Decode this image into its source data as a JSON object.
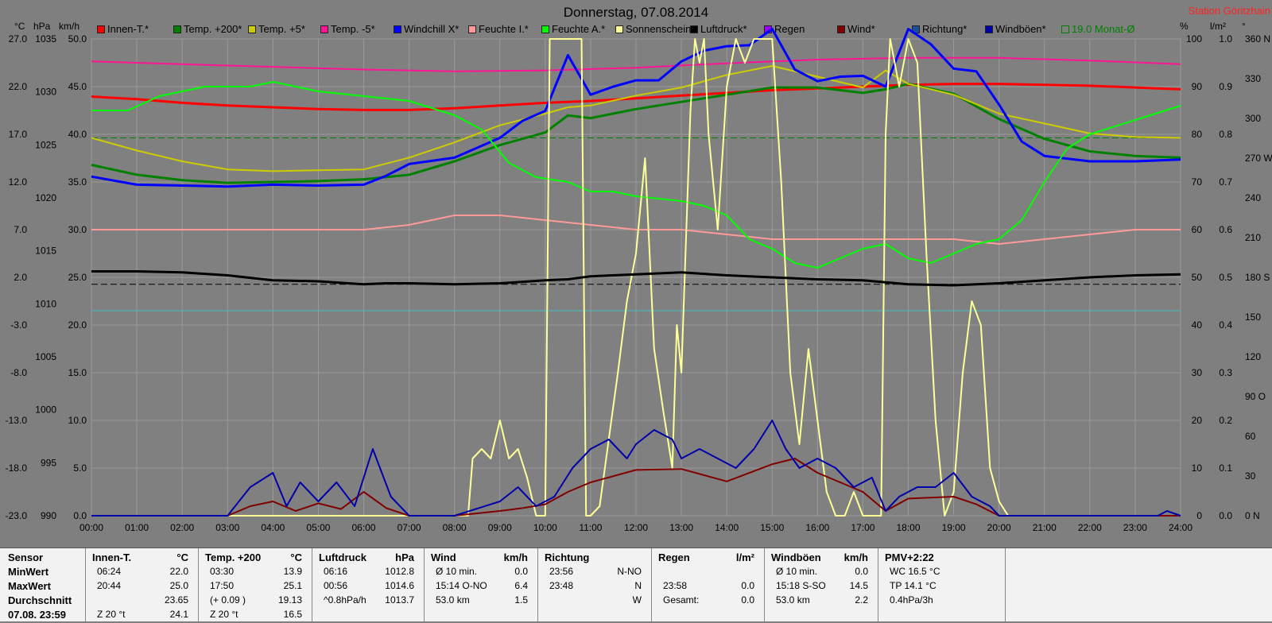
{
  "title": "Donnerstag, 07.08.2014",
  "station": "Station Göritzhain",
  "units": {
    "celsius": "°C",
    "hpa": "hPa",
    "kmh": "km/h",
    "percent": "%",
    "lm2": "l/m²",
    "deg": "°"
  },
  "legend": [
    {
      "label": "Innen-T.*",
      "color": "#ff0000"
    },
    {
      "label": "Temp. +200*",
      "color": "#008000"
    },
    {
      "label": "Temp. +5*",
      "color": "#cccc00"
    },
    {
      "label": "Temp. -5*",
      "color": "#ff1493"
    },
    {
      "label": "Windchill X*",
      "color": "#0000ff"
    },
    {
      "label": "Feuchte I.*",
      "color": "#ff9a9a"
    },
    {
      "label": "Feuchte A.*",
      "color": "#00ff00"
    },
    {
      "label": "Sonnenschein",
      "color": "#ffff99"
    },
    {
      "label": "Luftdruck*",
      "color": "#000000"
    },
    {
      "label": "Regen",
      "color": "#9900ff"
    },
    {
      "label": "Wind*",
      "color": "#800000"
    },
    {
      "label": "Richtung*",
      "color": "#1f4e99"
    },
    {
      "label": "Windböen*",
      "color": "#0000aa"
    },
    {
      "label": "19.0 Monat-Ø",
      "color": "#008000"
    }
  ],
  "chart_data": {
    "type": "line",
    "title": "Donnerstag, 07.08.2014",
    "x_ticks": [
      "00:00",
      "01:00",
      "02:00",
      "03:00",
      "04:00",
      "05:00",
      "06:00",
      "07:00",
      "08:00",
      "09:00",
      "10:00",
      "11:00",
      "12:00",
      "13:00",
      "14:00",
      "15:00",
      "16:00",
      "17:00",
      "18:00",
      "19:00",
      "20:00",
      "21:00",
      "22:00",
      "23:00",
      "24:00"
    ],
    "xlim": [
      0,
      24
    ],
    "axes": {
      "temp_c": {
        "ticks": [
          "27.0",
          "22.0",
          "17.0",
          "12.0",
          "7.0",
          "2.0",
          "-3.0",
          "-8.0",
          "-13.0",
          "-18.0",
          "-23.0"
        ],
        "ylim": [
          -23,
          30
        ]
      },
      "pressure_hpa": {
        "ticks": [
          "1035",
          "1030",
          "1025",
          "1020",
          "1015",
          "1010",
          "1005",
          "1000",
          "995",
          "990"
        ],
        "ylim": [
          990,
          1038
        ]
      },
      "speed_kmh": {
        "ticks": [
          "50.0",
          "45.0",
          "40.0",
          "35.0",
          "30.0",
          "25.0",
          "20.0",
          "15.0",
          "10.0",
          "5.0",
          "0.0"
        ],
        "ylim": [
          0,
          50
        ]
      },
      "percent": {
        "ticks": [
          "100",
          "90",
          "80",
          "70",
          "60",
          "50",
          "40",
          "30",
          "20",
          "10",
          "0"
        ],
        "ylim": [
          0,
          100
        ]
      },
      "rain_lm2": {
        "ticks": [
          "1.0",
          "0.9",
          "0.8",
          "0.7",
          "0.6",
          "0.5",
          "0.4",
          "0.3",
          "0.2",
          "0.1",
          "0.0"
        ],
        "ylim": [
          0,
          1
        ]
      },
      "direction_deg": {
        "ticks": [
          "360 N",
          "330",
          "300",
          "270 W",
          "240",
          "210",
          "180 S",
          "150",
          "120",
          "90 O",
          "60",
          "30",
          "0 N"
        ],
        "ylim": [
          0,
          360
        ]
      }
    },
    "reference_lines": [
      {
        "name": "Monat-Ø",
        "axis": "temp_c",
        "value": 19.0,
        "color": "#008000"
      },
      {
        "name": "pressure-ref",
        "axis": "pressure_hpa",
        "value": 1013.3,
        "color": "#000000"
      },
      {
        "name": "cyan-ref",
        "axis": "percent",
        "value": 43,
        "color": "#40c0c0"
      }
    ],
    "series": [
      {
        "name": "Innen-T.*",
        "axis": "temp_c",
        "color": "#ff0000",
        "width": 3,
        "x": [
          0,
          1,
          2,
          3,
          4,
          5,
          6,
          7,
          8,
          9,
          10,
          11,
          12,
          13,
          14,
          15,
          16,
          17,
          18,
          19,
          20,
          21,
          22,
          23,
          24
        ],
        "y": [
          23.6,
          23.3,
          22.9,
          22.6,
          22.4,
          22.2,
          22.1,
          22.1,
          22.3,
          22.6,
          22.9,
          23.1,
          23.4,
          23.7,
          24.0,
          24.3,
          24.5,
          24.7,
          24.9,
          25.0,
          25.0,
          24.9,
          24.8,
          24.6,
          24.4
        ]
      },
      {
        "name": "Temp. +200*",
        "axis": "temp_c",
        "color": "#008000",
        "width": 3,
        "x": [
          0,
          1,
          2,
          3,
          4,
          5,
          6,
          7,
          8,
          9,
          10,
          10.5,
          11,
          12,
          13,
          14,
          15,
          16,
          17,
          17.5,
          18,
          19,
          20,
          21,
          22,
          23,
          24
        ],
        "y": [
          16.0,
          14.9,
          14.3,
          14.0,
          14.1,
          14.2,
          14.4,
          14.9,
          16.4,
          18.2,
          19.6,
          21.5,
          21.2,
          22.2,
          23.0,
          23.8,
          24.6,
          24.6,
          24.0,
          24.4,
          25.0,
          23.9,
          21.1,
          18.9,
          17.5,
          17.0,
          16.8
        ]
      },
      {
        "name": "Temp. +5*",
        "axis": "temp_c",
        "color": "#cccc00",
        "width": 2,
        "x": [
          0,
          1,
          2,
          3,
          4,
          5,
          6,
          7,
          8,
          9,
          10,
          10.5,
          11,
          12,
          13,
          14,
          15,
          16,
          17,
          17.5,
          18,
          19,
          20,
          21,
          22,
          23,
          24
        ],
        "y": [
          19.0,
          17.6,
          16.4,
          15.5,
          15.3,
          15.4,
          15.5,
          16.8,
          18.5,
          20.4,
          21.7,
          22.4,
          22.6,
          23.7,
          24.6,
          26.0,
          27.0,
          25.8,
          24.6,
          26.5,
          25.0,
          23.8,
          21.7,
          20.6,
          19.5,
          19.1,
          19.0
        ]
      },
      {
        "name": "Temp. -5*",
        "axis": "temp_c",
        "color": "#ff1493",
        "width": 2,
        "x": [
          0,
          2,
          4,
          6,
          8,
          10,
          12,
          14,
          16,
          18,
          20,
          22,
          24
        ],
        "y": [
          27.5,
          27.2,
          26.9,
          26.6,
          26.4,
          26.5,
          26.8,
          27.3,
          27.7,
          27.9,
          27.9,
          27.6,
          27.2
        ]
      },
      {
        "name": "Windchill X*",
        "axis": "temp_c",
        "color": "#0000ff",
        "width": 3,
        "x": [
          0,
          1,
          2,
          3,
          4,
          5,
          6,
          6.5,
          7,
          8,
          9,
          9.5,
          10,
          10.5,
          11,
          11.5,
          12,
          12.5,
          13,
          13.5,
          14,
          14.5,
          15,
          15.5,
          16,
          16.5,
          17,
          17.5,
          18,
          18.5,
          19,
          19.5,
          20,
          20.5,
          21,
          22,
          23,
          24
        ],
        "y": [
          14.7,
          13.8,
          13.7,
          13.6,
          13.8,
          13.7,
          13.8,
          14.8,
          16.1,
          16.8,
          19.0,
          20.9,
          22.0,
          28.2,
          23.8,
          24.7,
          25.4,
          25.4,
          27.5,
          28.7,
          29.2,
          29.3,
          31.1,
          26.6,
          25.3,
          25.8,
          25.9,
          24.7,
          31.1,
          29.4,
          26.7,
          26.4,
          22.7,
          18.6,
          17.0,
          16.4,
          16.4,
          16.6
        ]
      },
      {
        "name": "Feuchte I.*",
        "axis": "percent",
        "color": "#ff9a9a",
        "width": 2,
        "x": [
          0,
          2,
          4,
          6,
          7,
          8,
          9,
          10,
          11,
          12,
          13,
          14,
          15,
          16,
          17,
          18,
          19,
          20,
          21,
          22,
          23,
          24
        ],
        "y": [
          60,
          60,
          60,
          60,
          61,
          63,
          63,
          62,
          61,
          60,
          60,
          59,
          58,
          58,
          58,
          58,
          58,
          57,
          58,
          59,
          60,
          60
        ]
      },
      {
        "name": "Feuchte A.*",
        "axis": "percent",
        "color": "#00ff00",
        "width": 2,
        "x": [
          0,
          0.8,
          1.5,
          2.5,
          3.5,
          4.0,
          5,
          6,
          7,
          8,
          8.6,
          9.2,
          9.8,
          10.5,
          11,
          11.5,
          12,
          13,
          13.5,
          14,
          14.5,
          15,
          15.5,
          16,
          16.5,
          17,
          17.5,
          18,
          18.5,
          19,
          19.5,
          20,
          20.5,
          21,
          21.5,
          22,
          23,
          24
        ],
        "y": [
          85,
          85,
          88,
          90,
          90,
          91,
          89,
          88,
          87,
          84,
          81,
          74,
          71,
          70,
          68,
          68,
          67,
          66,
          65,
          63,
          58,
          56,
          53,
          52,
          54,
          56,
          57,
          54,
          53,
          55,
          57,
          58,
          62,
          70,
          77,
          80,
          83,
          86
        ]
      },
      {
        "name": "Sonnenschein",
        "axis": "percent",
        "color": "#ffff99",
        "width": 2,
        "x": [
          0,
          8.3,
          8.4,
          8.6,
          8.8,
          9.0,
          9.2,
          9.4,
          9.6,
          9.8,
          10.0,
          10.1,
          10.2,
          10.8,
          10.9,
          11.0,
          11.2,
          11.6,
          11.8,
          12.0,
          12.2,
          12.4,
          12.6,
          12.8,
          12.9,
          13.0,
          13.2,
          13.3,
          13.4,
          13.5,
          13.6,
          13.8,
          14.0,
          14.2,
          14.4,
          14.6,
          14.8,
          15.0,
          15.2,
          15.4,
          15.6,
          15.8,
          16.0,
          16.2,
          16.4,
          16.6,
          16.8,
          17.0,
          17.2,
          17.4,
          17.5,
          17.6,
          17.8,
          18.0,
          18.2,
          18.4,
          18.6,
          18.8,
          19.0,
          19.2,
          19.4,
          19.6,
          19.8,
          20.0,
          20.2,
          24.0
        ],
        "y": [
          0,
          0,
          12,
          14,
          12,
          20,
          12,
          14,
          8,
          0,
          0,
          100,
          100,
          100,
          0,
          0,
          2,
          30,
          45,
          55,
          75,
          35,
          22,
          10,
          40,
          30,
          85,
          100,
          95,
          100,
          80,
          60,
          90,
          100,
          95,
          100,
          100,
          100,
          70,
          30,
          15,
          35,
          20,
          5,
          0,
          0,
          5,
          0,
          0,
          0,
          80,
          100,
          90,
          100,
          95,
          55,
          20,
          0,
          5,
          30,
          45,
          40,
          10,
          3,
          0,
          0
        ]
      },
      {
        "name": "Luftdruck*",
        "axis": "pressure_hpa",
        "color": "#000000",
        "width": 3,
        "x": [
          0,
          1,
          2,
          3,
          4,
          5,
          6,
          6.5,
          7,
          8,
          9,
          10,
          10.5,
          11,
          12,
          13,
          14,
          15,
          16,
          17,
          18,
          19,
          20,
          21,
          22,
          23,
          24
        ],
        "y": [
          1014.6,
          1014.6,
          1014.5,
          1014.2,
          1013.7,
          1013.6,
          1013.3,
          1013.4,
          1013.4,
          1013.3,
          1013.4,
          1013.7,
          1013.8,
          1014.1,
          1014.3,
          1014.5,
          1014.2,
          1014.0,
          1013.8,
          1013.7,
          1013.3,
          1013.2,
          1013.4,
          1013.7,
          1014.0,
          1014.2,
          1014.3
        ]
      },
      {
        "name": "Wind*",
        "axis": "speed_kmh",
        "color": "#800000",
        "width": 2,
        "x": [
          0,
          3,
          3.5,
          4,
          4.5,
          5,
          5.5,
          6,
          6.5,
          7,
          8,
          9,
          9.5,
          10,
          10.5,
          11,
          12,
          13,
          14,
          15,
          15.5,
          16,
          16.5,
          17,
          17.5,
          18,
          19,
          19.5,
          20,
          24
        ],
        "y": [
          0,
          0,
          1,
          1.5,
          0.5,
          1.3,
          0.7,
          2.5,
          0.8,
          0,
          0,
          0.5,
          0.8,
          1.2,
          2.5,
          3.5,
          4.8,
          4.9,
          3.6,
          5.4,
          6.0,
          4.5,
          3.5,
          2.5,
          0.5,
          1.8,
          2.0,
          1.2,
          0,
          0
        ]
      },
      {
        "name": "Windböen*",
        "axis": "speed_kmh",
        "color": "#0000aa",
        "width": 2,
        "x": [
          0,
          3,
          3.5,
          4,
          4.3,
          4.6,
          5,
          5.4,
          5.8,
          6.2,
          6.6,
          7,
          8,
          9,
          9.4,
          9.8,
          10.2,
          10.6,
          11,
          11.4,
          11.8,
          12,
          12.4,
          12.8,
          13,
          13.4,
          13.8,
          14.2,
          14.6,
          15,
          15.3,
          15.6,
          16,
          16.4,
          16.8,
          17.2,
          17.5,
          17.8,
          18.2,
          18.6,
          19,
          19.4,
          19.8,
          20,
          23.5,
          23.7,
          24
        ],
        "y": [
          0,
          0,
          3,
          4.5,
          1,
          3.5,
          1.5,
          3.5,
          1,
          7,
          2,
          0,
          0,
          1.5,
          3,
          1,
          2,
          5,
          7,
          8,
          6,
          7.5,
          9,
          8,
          6,
          7,
          6,
          5,
          7,
          10,
          7,
          5,
          6,
          5,
          3,
          4,
          0.5,
          2,
          3,
          3,
          4.5,
          2,
          1,
          0,
          0,
          0.5,
          0
        ]
      }
    ]
  },
  "table": {
    "row_labels": [
      "Sensor",
      "MinWert",
      "MaxWert",
      "Durchschnitt",
      "07.08. 23:59"
    ],
    "columns": [
      {
        "header": "Innen-T.",
        "unit": "°C",
        "cells": [
          [
            "06:24",
            "22.0"
          ],
          [
            "20:44",
            "25.0"
          ],
          [
            "",
            "23.65"
          ],
          [
            "Ζ 20 °t",
            "24.1"
          ]
        ]
      },
      {
        "header": "Temp. +200",
        "unit": "°C",
        "cells": [
          [
            "03:30",
            "13.9"
          ],
          [
            "17:50",
            "25.1"
          ],
          [
            "(+ 0.09 )",
            "19.13"
          ],
          [
            "Ζ 20 °t",
            "16.5"
          ]
        ]
      },
      {
        "header": "Luftdruck",
        "unit": "hPa",
        "cells": [
          [
            "06:16",
            "1012.8"
          ],
          [
            "00:56",
            "1014.6"
          ],
          [
            "^0.8hPa/h",
            "1013.7"
          ],
          [
            "",
            ""
          ]
        ]
      },
      {
        "header": "Wind",
        "unit": "km/h",
        "cells": [
          [
            "Ø 10 min.",
            "0.0"
          ],
          [
            "15:14 O-NO",
            "6.4"
          ],
          [
            "53.0 km",
            "1.5"
          ],
          [
            "",
            ""
          ]
        ]
      },
      {
        "header": "Richtung",
        "unit": "",
        "cells": [
          [
            "23:56",
            "N-NO"
          ],
          [
            "23:48",
            "N"
          ],
          [
            "",
            "W"
          ],
          [
            "",
            ""
          ]
        ]
      },
      {
        "header": "Regen",
        "unit": "l/m²",
        "cells": [
          [
            "",
            ""
          ],
          [
            "23:58",
            "0.0"
          ],
          [
            "Gesamt:",
            "0.0"
          ],
          [
            "",
            ""
          ]
        ]
      },
      {
        "header": "Windböen",
        "unit": "km/h",
        "cells": [
          [
            "Ø 10 min.",
            "0.0"
          ],
          [
            "15:18 S-SO",
            "14.5"
          ],
          [
            "53.0 km",
            "2.2"
          ],
          [
            "",
            ""
          ]
        ]
      },
      {
        "header": "PMV+2:22",
        "unit": "",
        "cells": [
          [
            "WC 16.5 °C",
            ""
          ],
          [
            "TP 14.1 °C",
            ""
          ],
          [
            "0.4hPa/3h",
            ""
          ],
          [
            "",
            ""
          ]
        ]
      }
    ]
  }
}
